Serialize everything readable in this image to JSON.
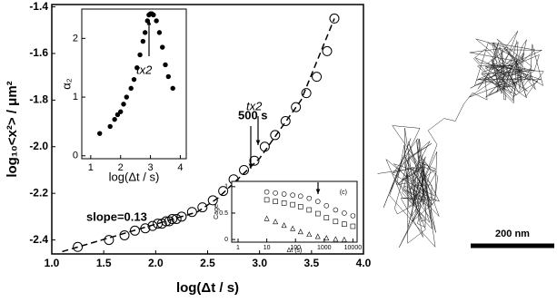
{
  "chart_data": [
    {
      "type": "scatter",
      "x_label": "log(Δt / s)",
      "y_label": "log₁₀<x²> / μm²",
      "xlim": [
        1.0,
        4.0
      ],
      "xticks": [
        {
          "value": 1,
          "label": "1.0"
        },
        1.5,
        {
          "value": 2,
          "label": "2.0"
        },
        2.5,
        {
          "value": 3,
          "label": "3.0"
        },
        3.5,
        {
          "value": 4,
          "label": "4.0"
        }
      ],
      "ylim": [
        -2.46,
        -1.39
      ],
      "yticks": [
        -2.4,
        -2.2,
        {
          "value": -2,
          "label": "-2.0"
        },
        -1.8,
        -1.6,
        -1.4
      ],
      "series": [
        {
          "marker": "circle-open",
          "x": [
            1.25,
            1.55,
            1.7,
            1.8,
            1.9,
            1.97,
            2.02,
            2.06,
            2.1,
            2.13,
            2.16,
            2.2,
            2.25,
            2.35,
            2.45,
            2.55,
            2.65,
            2.75,
            2.85,
            2.95,
            3.05,
            3.15,
            3.25,
            3.35,
            3.45,
            3.55,
            3.65,
            3.72
          ],
          "values": [
            -2.43,
            -2.4,
            -2.38,
            -2.36,
            -2.35,
            -2.34,
            -2.33,
            -2.33,
            -2.32,
            -2.32,
            -2.31,
            -2.31,
            -2.3,
            -2.28,
            -2.26,
            -2.23,
            -2.19,
            -2.14,
            -2.1,
            -2.06,
            -2.0,
            -1.95,
            -1.89,
            -1.83,
            -1.77,
            -1.7,
            -1.59,
            -1.45
          ]
        },
        {
          "marker": "dashed-line",
          "x": [
            1.1,
            2.4,
            2.6,
            3.0,
            3.4,
            3.72
          ],
          "values": [
            -2.45,
            -2.28,
            -2.22,
            -2.05,
            -1.8,
            -1.45
          ]
        }
      ],
      "annotations": [
        "slope=0.13",
        "500 s",
        "tx2"
      ]
    },
    {
      "type": "scatter",
      "x_label": "log(Δt / s)",
      "y_label": "α₂",
      "xlim": [
        0.7,
        4.2
      ],
      "xticks": [
        1,
        2,
        3,
        4
      ],
      "ylim": [
        -0.05,
        2.5
      ],
      "yticks": [
        0,
        1,
        2
      ],
      "series": [
        {
          "marker": "circle-filled",
          "x": [
            1.3,
            1.65,
            1.8,
            1.9,
            2.0,
            2.1,
            2.2,
            2.35,
            2.45,
            2.55,
            2.65,
            2.75,
            2.82,
            2.9,
            2.95,
            3.0,
            3.05,
            3.1,
            3.2,
            3.3,
            3.4,
            3.5,
            3.6,
            3.75
          ],
          "values": [
            0.38,
            0.5,
            0.62,
            0.7,
            0.75,
            0.88,
            1.0,
            1.15,
            1.3,
            1.5,
            1.72,
            1.95,
            2.1,
            2.3,
            2.4,
            2.42,
            2.42,
            2.4,
            2.3,
            2.1,
            1.85,
            1.55,
            1.35,
            1.15
          ]
        }
      ],
      "annotations": [
        "tx2"
      ]
    },
    {
      "type": "scatter",
      "x_label": "Δt (s)",
      "y_label": "Cage",
      "xscale": "log",
      "xlim": [
        0.6,
        14000
      ],
      "xticks": [
        1,
        10,
        100,
        1000,
        10000
      ],
      "ylim": [
        -0.05,
        1.1
      ],
      "yticks": [
        0,
        0.5,
        1
      ],
      "series": [
        {
          "marker": "circle-open",
          "x": [
            10,
            20,
            40,
            80,
            150,
            300,
            600,
            1200,
            2500,
            5000,
            10000
          ],
          "values": [
            0.9,
            0.88,
            0.86,
            0.84,
            0.82,
            0.78,
            0.72,
            0.64,
            0.56,
            0.5,
            0.45
          ]
        },
        {
          "marker": "square-open",
          "x": [
            10,
            20,
            40,
            80,
            150,
            300,
            600,
            1200,
            2500,
            5000,
            10000
          ],
          "values": [
            0.75,
            0.72,
            0.69,
            0.66,
            0.62,
            0.56,
            0.49,
            0.41,
            0.34,
            0.29,
            0.25
          ]
        },
        {
          "marker": "triangle-open",
          "x": [
            10,
            20,
            40,
            80,
            150,
            300,
            600,
            1200,
            2500,
            5000
          ],
          "values": [
            0.4,
            0.34,
            0.27,
            0.21,
            0.15,
            0.1,
            0.06,
            0.03,
            0.01,
            0.0
          ]
        }
      ],
      "annotations": [
        "(c)"
      ]
    }
  ],
  "image": {
    "scale_label": "200 nm"
  }
}
